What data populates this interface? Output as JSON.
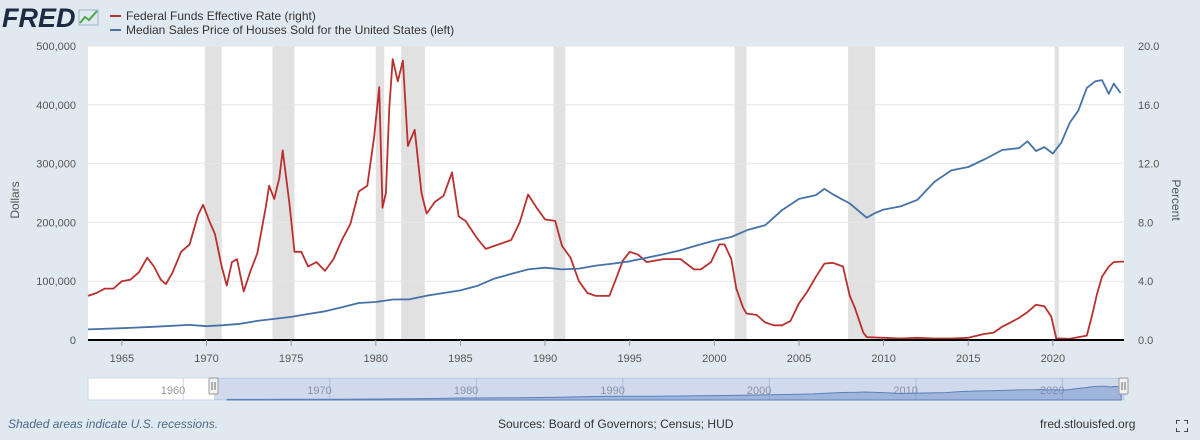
{
  "logo_text": "FRED",
  "colors": {
    "background": "#e1e9f0",
    "plot_bg": "#ffffff",
    "recession": "#e1e1e1",
    "fedfunds": "#b8312f",
    "house": "#4572a7",
    "navigator_fill": "#7f9fcf",
    "grid": "#e6e6e6"
  },
  "legend": [
    {
      "label": "Federal Funds Effective Rate (right)",
      "color": "#b8312f"
    },
    {
      "label": "Median Sales Price of Houses Sold for the United States (left)",
      "color": "#4572a7"
    }
  ],
  "footer": {
    "recession_note": "Shaded areas indicate U.S. recessions.",
    "sources": "Sources: Board of Governors; Census; HUD",
    "site": "fred.stlouisfed.org"
  },
  "chart_data": {
    "type": "line",
    "x_range": [
      1963,
      2024.2
    ],
    "y_left": {
      "label": "Dollars",
      "range": [
        0,
        500000
      ],
      "ticks": [
        0,
        100000,
        200000,
        300000,
        400000,
        500000
      ],
      "tick_labels": [
        "0",
        "100,000",
        "200,000",
        "300,000",
        "400,000",
        "500,000"
      ]
    },
    "y_right": {
      "label": "Percent",
      "range": [
        0,
        20
      ],
      "ticks": [
        0,
        4,
        8,
        12,
        16,
        20
      ],
      "tick_labels": [
        "0.0",
        "4.0",
        "8.0",
        "12.0",
        "16.0",
        "20.0"
      ]
    },
    "x_ticks": [
      1965,
      1970,
      1975,
      1980,
      1985,
      1990,
      1995,
      2000,
      2005,
      2010,
      2015,
      2020
    ],
    "navigator_ticks": [
      1960,
      1970,
      1980,
      1990,
      2000,
      2010,
      2020
    ],
    "recessions": [
      [
        1969.9,
        1970.9
      ],
      [
        1973.9,
        1975.2
      ],
      [
        1980.0,
        1980.5
      ],
      [
        1981.5,
        1982.9
      ],
      [
        1990.5,
        1991.2
      ],
      [
        2001.2,
        2001.9
      ],
      [
        2007.9,
        2009.5
      ],
      [
        2020.1,
        2020.35
      ]
    ],
    "series": [
      {
        "name": "Federal Funds Effective Rate (right)",
        "axis": "right",
        "x": [
          1963.0,
          1963.5,
          1964.0,
          1964.5,
          1965.0,
          1965.5,
          1966.0,
          1966.5,
          1966.9,
          1967.3,
          1967.6,
          1968.0,
          1968.5,
          1969.0,
          1969.5,
          1969.8,
          1970.2,
          1970.5,
          1970.9,
          1971.2,
          1971.5,
          1971.8,
          1972.2,
          1972.6,
          1973.0,
          1973.5,
          1973.7,
          1974.0,
          1974.3,
          1974.5,
          1974.9,
          1975.2,
          1975.6,
          1976.0,
          1976.5,
          1977.0,
          1977.5,
          1978.0,
          1978.5,
          1979.0,
          1979.5,
          1979.9,
          1980.2,
          1980.4,
          1980.6,
          1980.8,
          1981.0,
          1981.3,
          1981.6,
          1981.9,
          1982.3,
          1982.7,
          1983.0,
          1983.5,
          1984.0,
          1984.5,
          1984.9,
          1985.3,
          1986.0,
          1986.5,
          1987.0,
          1987.5,
          1988.0,
          1988.5,
          1989.0,
          1989.5,
          1990.0,
          1990.6,
          1991.0,
          1991.5,
          1992.0,
          1992.5,
          1993.0,
          1993.8,
          1994.2,
          1994.6,
          1995.0,
          1995.5,
          1996.0,
          1996.5,
          1997.0,
          1998.0,
          1998.8,
          1999.2,
          1999.8,
          2000.3,
          2000.6,
          2001.0,
          2001.3,
          2001.7,
          2001.9,
          2002.5,
          2003.0,
          2003.5,
          2004.0,
          2004.5,
          2005.0,
          2005.5,
          2006.0,
          2006.5,
          2007.0,
          2007.6,
          2008.0,
          2008.3,
          2008.8,
          2009.0,
          2010.0,
          2011.0,
          2012.0,
          2013.0,
          2014.0,
          2015.0,
          2015.9,
          2016.5,
          2017.0,
          2017.5,
          2018.0,
          2018.5,
          2019.0,
          2019.5,
          2019.9,
          2020.2,
          2020.5,
          2021.0,
          2022.0,
          2022.3,
          2022.6,
          2022.9,
          2023.3,
          2023.6,
          2024.0,
          2024.2
        ],
        "values": [
          3.0,
          3.2,
          3.5,
          3.5,
          4.0,
          4.1,
          4.6,
          5.6,
          5.0,
          4.1,
          3.8,
          4.6,
          6.0,
          6.5,
          8.5,
          9.2,
          8.0,
          7.2,
          5.0,
          3.7,
          5.3,
          5.5,
          3.3,
          4.7,
          5.9,
          9.0,
          10.5,
          9.6,
          11.0,
          12.9,
          9.3,
          6.0,
          6.0,
          5.0,
          5.3,
          4.7,
          5.5,
          6.8,
          7.9,
          10.1,
          10.5,
          13.8,
          17.2,
          9.0,
          10.0,
          15.8,
          19.1,
          17.6,
          19.0,
          13.2,
          14.3,
          10.0,
          8.6,
          9.4,
          9.8,
          11.4,
          8.4,
          8.1,
          6.9,
          6.2,
          6.4,
          6.6,
          6.8,
          8.0,
          9.9,
          9.0,
          8.2,
          8.1,
          6.4,
          5.6,
          4.0,
          3.2,
          3.0,
          3.0,
          4.2,
          5.4,
          6.0,
          5.8,
          5.3,
          5.4,
          5.5,
          5.5,
          4.8,
          4.8,
          5.3,
          6.5,
          6.5,
          5.5,
          3.5,
          2.2,
          1.8,
          1.7,
          1.2,
          1.0,
          1.0,
          1.3,
          2.5,
          3.3,
          4.3,
          5.2,
          5.25,
          5.0,
          3.0,
          2.2,
          0.5,
          0.2,
          0.15,
          0.1,
          0.15,
          0.1,
          0.1,
          0.15,
          0.4,
          0.5,
          0.9,
          1.2,
          1.5,
          1.9,
          2.4,
          2.3,
          1.6,
          0.1,
          0.1,
          0.08,
          0.3,
          1.6,
          3.1,
          4.3,
          5.0,
          5.3,
          5.33,
          5.33
        ]
      },
      {
        "name": "Median Sales Price of Houses Sold for the United States (left)",
        "axis": "left",
        "x": [
          1963.0,
          1965.0,
          1967.0,
          1969.0,
          1970.0,
          1971.0,
          1972.0,
          1973.0,
          1974.0,
          1975.0,
          1976.0,
          1977.0,
          1978.0,
          1979.0,
          1980.0,
          1981.0,
          1982.0,
          1983.0,
          1984.0,
          1985.0,
          1986.0,
          1987.0,
          1988.0,
          1989.0,
          1990.0,
          1991.0,
          1992.0,
          1993.0,
          1994.0,
          1995.0,
          1996.0,
          1997.0,
          1998.0,
          1999.0,
          2000.0,
          2001.0,
          2002.0,
          2003.0,
          2004.0,
          2005.0,
          2006.0,
          2006.5,
          2007.0,
          2007.5,
          2008.0,
          2009.0,
          2009.5,
          2010.0,
          2011.0,
          2012.0,
          2013.0,
          2014.0,
          2015.0,
          2016.0,
          2017.0,
          2018.0,
          2018.5,
          2019.0,
          2019.5,
          2020.0,
          2020.5,
          2021.0,
          2021.5,
          2022.0,
          2022.5,
          2022.9,
          2023.3,
          2023.6,
          2024.0
        ],
        "values": [
          18000,
          20000,
          22600,
          25600,
          23400,
          25200,
          27600,
          32500,
          35900,
          39300,
          44200,
          48800,
          55700,
          62900,
          64600,
          68900,
          69300,
          75300,
          79900,
          84300,
          92000,
          104500,
          112500,
          120000,
          122900,
          120000,
          121500,
          126500,
          130000,
          133900,
          140000,
          146000,
          152500,
          161000,
          169000,
          175200,
          187600,
          195000,
          221000,
          240000,
          246500,
          257000,
          247900,
          240000,
          232100,
          208000,
          216000,
          221800,
          227200,
          238400,
          268900,
          288500,
          294200,
          307800,
          323100,
          326400,
          338000,
          321500,
          328000,
          317000,
          336000,
          369800,
          390000,
          428700,
          440000,
          442000,
          418500,
          436000,
          420000
        ]
      }
    ]
  }
}
